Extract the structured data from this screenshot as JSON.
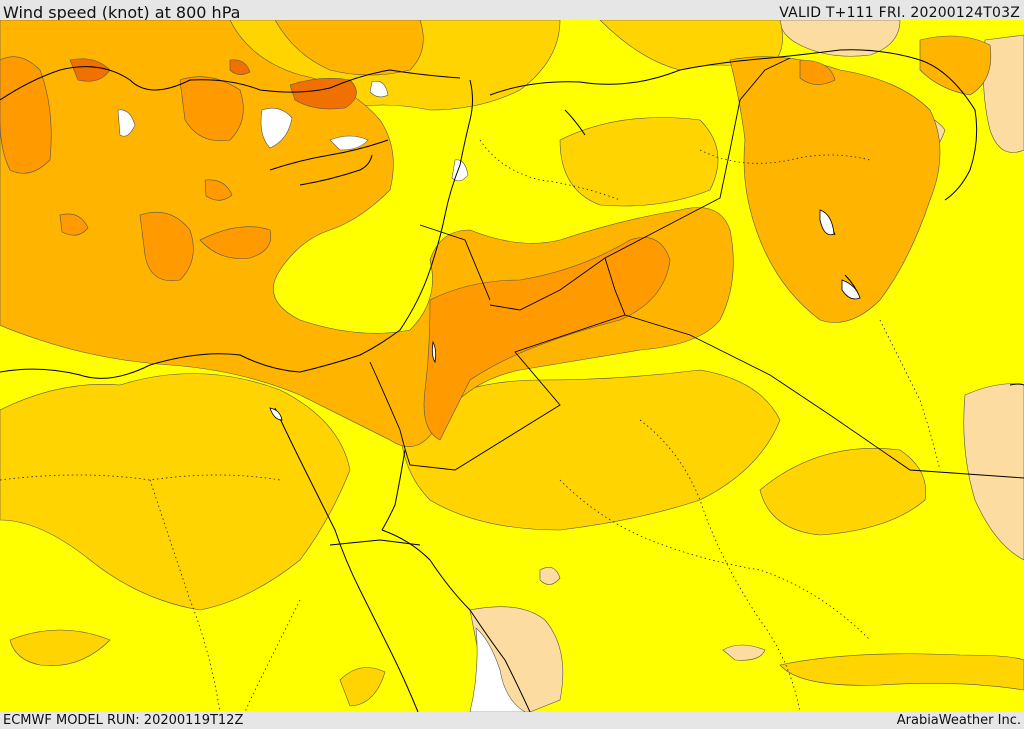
{
  "header": {
    "title": "Wind speed (knot) at 800 hPa",
    "valid": "VALID T+111 FRI. 20200124T03Z"
  },
  "footer": {
    "model_run": "ECMWF MODEL RUN: 20200119T12Z",
    "credit": "ArabiaWeather Inc."
  },
  "map": {
    "region": "Eastern Mediterranean, Levant, Egypt and northern Arabia",
    "field": "wind speed",
    "level": "800 hPa",
    "colors": {
      "calm": "#ffffff",
      "light": "#fcdca0",
      "low": "#ffff00",
      "moderate": "#ffd400",
      "fresh": "#ffb400",
      "strong": "#ff9a00",
      "very_strong": "#f07000",
      "boundary": "#000000"
    }
  }
}
